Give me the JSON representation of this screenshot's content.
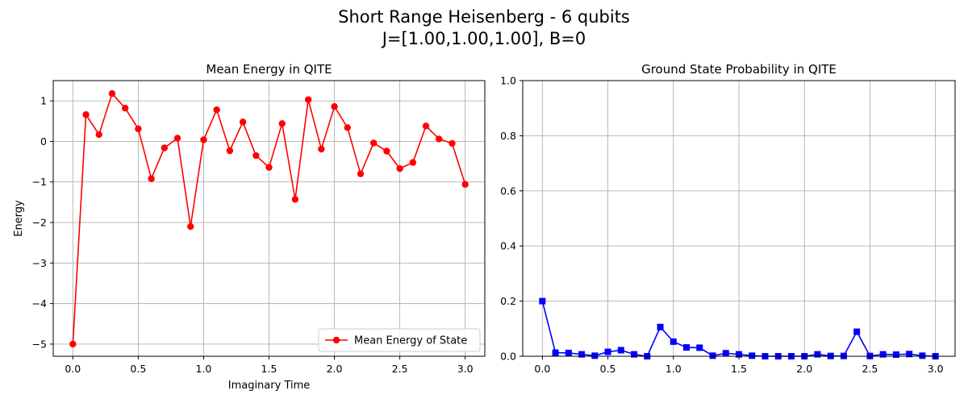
{
  "suptitle": {
    "line1": "Short Range Heisenberg - 6 qubits",
    "line2": "J=[1.00,1.00,1.00], B=0"
  },
  "chart_data": [
    {
      "type": "line",
      "title": "Mean Energy in QITE",
      "xlabel": "Imaginary Time",
      "ylabel": "Energy",
      "xlim": [
        -0.15,
        3.15
      ],
      "ylim": [
        -5.3,
        1.5
      ],
      "xticks": [
        0.0,
        0.5,
        1.0,
        1.5,
        2.0,
        2.5,
        3.0
      ],
      "xtick_labels": [
        "0.0",
        "0.5",
        "1.0",
        "1.5",
        "2.0",
        "2.5",
        "3.0"
      ],
      "yticks": [
        -5,
        -4,
        -3,
        -2,
        -1,
        0,
        1
      ],
      "ytick_labels": [
        "−5",
        "−4",
        "−3",
        "−2",
        "−1",
        "0",
        "1"
      ],
      "grid": true,
      "legend": {
        "placement": "lower-right"
      },
      "series": [
        {
          "name": "Mean Energy of State",
          "color": "#ff0000",
          "marker": "circle",
          "x": [
            0.0,
            0.1,
            0.2,
            0.3,
            0.4,
            0.5,
            0.6,
            0.7,
            0.8,
            0.9,
            1.0,
            1.1,
            1.2,
            1.3,
            1.4,
            1.5,
            1.6,
            1.7,
            1.8,
            1.9,
            2.0,
            2.1,
            2.2,
            2.3,
            2.4,
            2.5,
            2.6,
            2.7,
            2.8,
            2.9,
            3.0
          ],
          "y": [
            -5.0,
            0.66,
            0.17,
            1.18,
            0.82,
            0.31,
            -0.92,
            -0.16,
            0.08,
            -2.1,
            0.04,
            0.78,
            -0.23,
            0.48,
            -0.35,
            -0.64,
            0.44,
            -1.43,
            1.03,
            -0.19,
            0.86,
            0.34,
            -0.8,
            -0.04,
            -0.24,
            -0.67,
            -0.52,
            0.38,
            0.06,
            -0.05,
            -1.06
          ]
        }
      ]
    },
    {
      "type": "line",
      "title": "Ground State Probability in QITE",
      "xlabel": "",
      "ylabel": "",
      "xlim": [
        -0.15,
        3.15
      ],
      "ylim": [
        0.0,
        1.0
      ],
      "xticks": [
        0.0,
        0.5,
        1.0,
        1.5,
        2.0,
        2.5,
        3.0
      ],
      "xtick_labels": [
        "0.0",
        "0.5",
        "1.0",
        "1.5",
        "2.0",
        "2.5",
        "3.0"
      ],
      "yticks": [
        0.0,
        0.2,
        0.4,
        0.6,
        0.8,
        1.0
      ],
      "ytick_labels": [
        "0.0",
        "0.2",
        "0.4",
        "0.6",
        "0.8",
        "1.0"
      ],
      "grid": true,
      "series": [
        {
          "color": "#0000ff",
          "marker": "square",
          "x": [
            0.0,
            0.1,
            0.2,
            0.3,
            0.4,
            0.5,
            0.6,
            0.7,
            0.8,
            0.9,
            1.0,
            1.1,
            1.2,
            1.3,
            1.4,
            1.5,
            1.6,
            1.7,
            1.8,
            1.9,
            2.0,
            2.1,
            2.2,
            2.3,
            2.4,
            2.5,
            2.6,
            2.7,
            2.8,
            2.9,
            3.0
          ],
          "y": [
            0.2,
            0.013,
            0.012,
            0.007,
            0.002,
            0.016,
            0.022,
            0.007,
            0.0,
            0.106,
            0.053,
            0.032,
            0.031,
            0.002,
            0.011,
            0.007,
            0.002,
            0.0,
            0.0,
            0.0,
            0.0,
            0.007,
            0.001,
            0.001,
            0.089,
            0.001,
            0.007,
            0.006,
            0.008,
            0.002,
            0.0
          ]
        }
      ]
    }
  ]
}
